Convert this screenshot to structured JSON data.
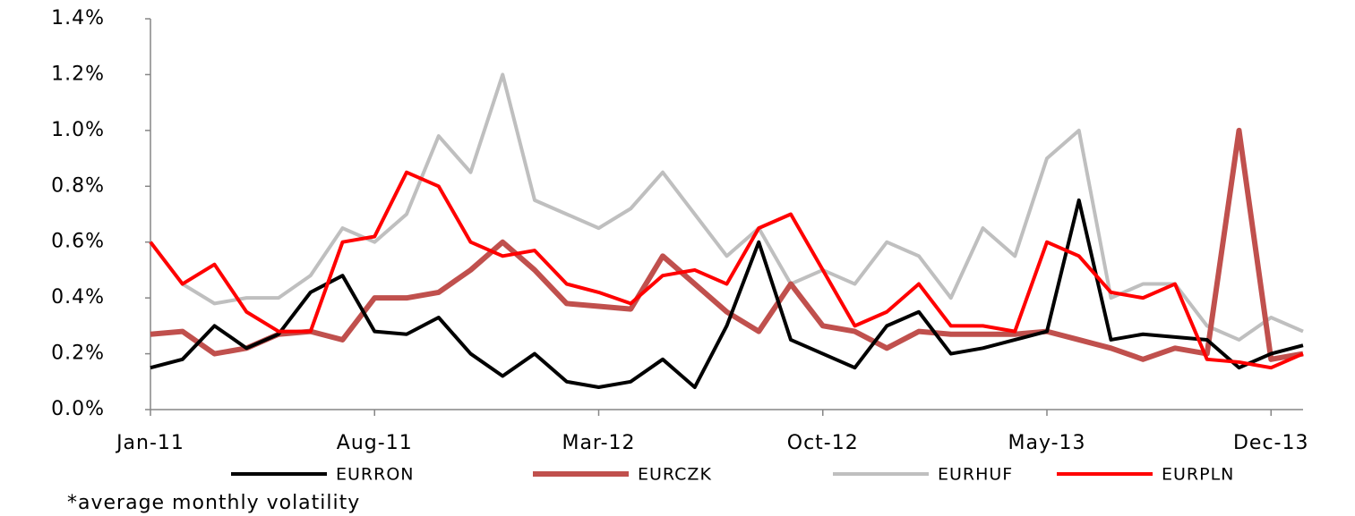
{
  "chart_data": {
    "type": "line",
    "annotation": "*average monthly volatility",
    "categories": [
      "Jan-11",
      null,
      null,
      null,
      null,
      null,
      null,
      "Aug-11",
      null,
      null,
      null,
      null,
      null,
      null,
      "Mar-12",
      null,
      null,
      null,
      null,
      null,
      null,
      "Oct-12",
      null,
      null,
      null,
      null,
      null,
      null,
      "May-13",
      null,
      null,
      null,
      null,
      null,
      null,
      "Dec-13",
      null
    ],
    "series": [
      {
        "name": "EURRON",
        "color": "#000000",
        "values": [
          0.15,
          0.18,
          0.3,
          0.22,
          0.27,
          0.42,
          0.48,
          0.28,
          0.27,
          0.33,
          0.2,
          0.12,
          0.2,
          0.1,
          0.08,
          0.1,
          0.18,
          0.08,
          0.3,
          0.6,
          0.25,
          0.2,
          0.15,
          0.3,
          0.35,
          0.2,
          0.22,
          0.25,
          0.28,
          0.75,
          0.25,
          0.27,
          0.26,
          0.25,
          0.15,
          0.2,
          0.23
        ]
      },
      {
        "name": "EURCZK",
        "color": "#c0504d",
        "values": [
          0.27,
          0.28,
          0.2,
          0.22,
          0.27,
          0.28,
          0.25,
          0.4,
          0.4,
          0.42,
          0.5,
          0.6,
          0.5,
          0.38,
          0.37,
          0.36,
          0.55,
          0.45,
          0.35,
          0.28,
          0.45,
          0.3,
          0.28,
          0.22,
          0.28,
          0.27,
          0.27,
          0.27,
          0.28,
          0.25,
          0.22,
          0.18,
          0.22,
          0.2,
          1.0,
          0.18,
          0.2
        ]
      },
      {
        "name": "EURHUF",
        "color": "#bfbfbf",
        "values": [
          0.6,
          0.45,
          0.38,
          0.4,
          0.4,
          0.48,
          0.65,
          0.6,
          0.7,
          0.98,
          0.85,
          1.2,
          0.75,
          0.7,
          0.65,
          0.72,
          0.85,
          0.7,
          0.55,
          0.65,
          0.45,
          0.5,
          0.45,
          0.6,
          0.55,
          0.4,
          0.65,
          0.55,
          0.9,
          1.0,
          0.4,
          0.45,
          0.45,
          0.3,
          0.25,
          0.33,
          0.28
        ]
      },
      {
        "name": "EURPLN",
        "color": "#ff0000",
        "values": [
          0.6,
          0.45,
          0.52,
          0.35,
          0.28,
          0.28,
          0.6,
          0.62,
          0.85,
          0.8,
          0.6,
          0.55,
          0.57,
          0.45,
          0.42,
          0.38,
          0.48,
          0.5,
          0.45,
          0.65,
          0.7,
          0.5,
          0.3,
          0.35,
          0.45,
          0.3,
          0.3,
          0.28,
          0.6,
          0.55,
          0.42,
          0.4,
          0.45,
          0.18,
          0.17,
          0.15,
          0.2
        ]
      }
    ],
    "ylim": [
      0,
      1.4
    ],
    "yticks": [
      {
        "value": 0,
        "label": "0.0%"
      },
      {
        "value": 0.2,
        "label": "0.2%"
      },
      {
        "value": 0.4,
        "label": "0.4%"
      },
      {
        "value": 0.6,
        "label": "0.6%"
      },
      {
        "value": 0.8,
        "label": "0.8%"
      },
      {
        "value": 1.0,
        "label": "1.0%"
      },
      {
        "value": 1.2,
        "label": "1.2%"
      },
      {
        "value": 1.4,
        "label": "1.4%"
      }
    ],
    "legend": "bottom"
  }
}
